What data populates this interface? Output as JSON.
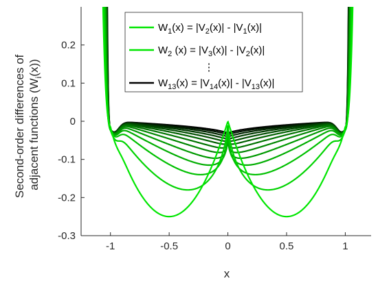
{
  "chart_data": {
    "type": "line",
    "xlabel": "x",
    "ylabel_line1": "Second-order differences of",
    "ylabel_line2": "adjacent functions (W",
    "ylabel_sub": "i",
    "ylabel_tail": "(x))",
    "xlim": [
      -1.25,
      1.22
    ],
    "ylim": [
      -0.3,
      0.3
    ],
    "x_ticks": [
      -1,
      -0.5,
      0,
      0.5,
      1
    ],
    "x_tick_labels": [
      "-1",
      "-0.5",
      "0",
      "0.5",
      "1"
    ],
    "y_ticks": [
      -0.3,
      -0.2,
      -0.1,
      0,
      0.1,
      0.2
    ],
    "y_tick_labels": [
      "-0.3",
      "-0.2",
      "-0.1",
      "0",
      "0.1",
      "0.2"
    ],
    "series_count": 13,
    "series_color_first": "#00e600",
    "series_color_last": "#000000",
    "minima": [
      -0.25,
      -0.18,
      -0.14,
      -0.115,
      -0.097,
      -0.082,
      -0.07,
      -0.06,
      -0.052,
      -0.045,
      -0.039,
      -0.034,
      -0.03
    ],
    "legend": {
      "placement": "top-center",
      "entries": [
        {
          "color": "#00e600",
          "lhs": "W",
          "lhs_sub": "1",
          "mid": "(x) = |V",
          "mid_sub": "2",
          "rhs": "(x)| - |V",
          "rhs_sub": "1",
          "end": "(x)|"
        },
        {
          "color": "#00e600",
          "lhs": "W",
          "lhs_sub": "2",
          "mid": " (x) = |V",
          "mid_sub": "3",
          "rhs": "(x)| - |V",
          "rhs_sub": "2",
          "end": "(x)|"
        },
        {
          "color": "#000000",
          "lhs": "W",
          "lhs_sub": "13",
          "mid": "(x) = |V",
          "mid_sub": "14",
          "rhs": "(x)| - |V",
          "rhs_sub": "13",
          "end": "(x)|"
        }
      ],
      "ellipsis": "⋮"
    }
  }
}
